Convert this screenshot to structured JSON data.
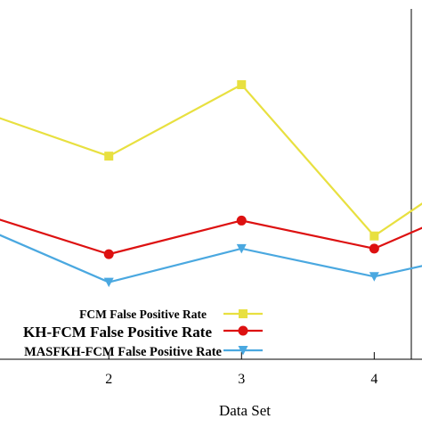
{
  "chart_data": {
    "type": "line",
    "xlabel": "Data Set",
    "ylabel": "",
    "x_ticks": [
      2,
      3,
      4
    ],
    "xlim": [
      1.18,
      4.36
    ],
    "ylim": [
      0,
      1
    ],
    "grid": false,
    "legend_placement": "bottom-left",
    "series": [
      {
        "name": "FCM False Positive Rate",
        "color": "#e8e040",
        "marker": "square",
        "x": [
          1,
          2,
          3,
          4,
          5
        ],
        "y": [
          0.71,
          0.545,
          0.8,
          0.26,
          0.58
        ]
      },
      {
        "name": "KH-FCM False Positive Rate",
        "color": "#dd1111",
        "marker": "circle",
        "x": [
          1,
          2,
          3,
          4,
          5
        ],
        "y": [
          0.345,
          0.195,
          0.315,
          0.215,
          0.42
        ]
      },
      {
        "name": "MASFKH-FCM False Positive Rate",
        "color": "#4aa8e0",
        "marker": "triangle-down",
        "x": [
          1,
          2,
          3,
          4,
          5
        ],
        "y": [
          0.3,
          0.095,
          0.215,
          0.115,
          0.22
        ]
      }
    ]
  }
}
